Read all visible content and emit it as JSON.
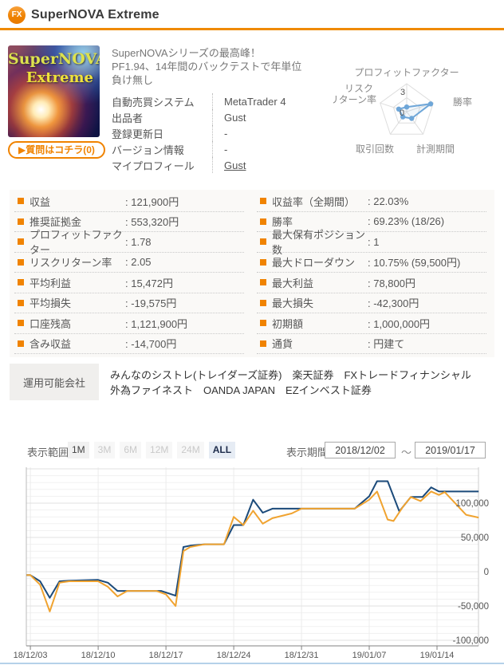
{
  "header": {
    "icon_label": "FX",
    "title": "SuperNOVA Extreme"
  },
  "product": {
    "image_text_line1": "SuperNOVA",
    "image_text_line2": "Extreme",
    "question_button": "▶質問はコチラ(0)",
    "description_lines": [
      "SuperNOVAシリーズの最高峰！",
      "PF1.94、14年間のバックテストで年単位",
      "負け無し"
    ],
    "info_rows": [
      {
        "label": "自動売買システム",
        "value": "MetaTrader 4",
        "link": false
      },
      {
        "label": "出品者",
        "value": "Gust",
        "link": false
      },
      {
        "label": "登録更新日",
        "value": "-",
        "link": false
      },
      {
        "label": "バージョン情報",
        "value": "-",
        "link": false
      },
      {
        "label": "マイプロフィール",
        "value": "Gust",
        "link": true
      }
    ]
  },
  "radar": {
    "axis_labels": {
      "top": "プロフィットファクター",
      "right": "勝率",
      "bottom_right": "計測期間",
      "bottom_left": "取引回数",
      "left_lines": [
        "リスク",
        "リターン率"
      ]
    },
    "scale_top": "3",
    "scale_center": "0",
    "max": 3,
    "values": [
      0.5,
      2.7,
      0.9,
      0.7,
      0.9
    ],
    "line_color": "#6ea6d8",
    "grid_color": "#dddddd"
  },
  "stats": {
    "left": [
      {
        "label": "収益",
        "value": ": 121,900円"
      },
      {
        "label": "推奨証拠金",
        "value": ": 553,320円"
      },
      {
        "label": "プロフィットファクター",
        "value": ": 1.78"
      },
      {
        "label": "リスクリターン率",
        "value": ": 2.05"
      },
      {
        "label": "平均利益",
        "value": ": 15,472円"
      },
      {
        "label": "平均損失",
        "value": ": -19,575円"
      },
      {
        "label": "口座残高",
        "value": ": 1,121,900円"
      },
      {
        "label": "含み収益",
        "value": ": -14,700円"
      }
    ],
    "right": [
      {
        "label": "収益率（全期間）",
        "value": ": 22.03%"
      },
      {
        "label": "勝率",
        "value": ": 69.23% (18/26)"
      },
      {
        "label": "最大保有ポジション数",
        "value": ": 1"
      },
      {
        "label": "最大ドローダウン",
        "value": ": 10.75% (59,500円)"
      },
      {
        "label": "最大利益",
        "value": ": 78,800円"
      },
      {
        "label": "最大損失",
        "value": ": -42,300円"
      },
      {
        "label": "初期額",
        "value": ": 1,000,000円"
      },
      {
        "label": "通貨",
        "value": ": 円建て"
      }
    ]
  },
  "brokers": {
    "label": "運用可能会社",
    "line1": "みんなのシストレ(トレイダーズ証券)　楽天証券　FXトレードフィナンシャル",
    "line2": "外為ファイネスト　OANDA JAPAN　EZインベスト証券"
  },
  "controls": {
    "range_label": "表示範囲",
    "buttons": [
      {
        "label": "1M",
        "state": "default"
      },
      {
        "label": "3M",
        "state": "disabled"
      },
      {
        "label": "6M",
        "state": "disabled"
      },
      {
        "label": "12M",
        "state": "disabled"
      },
      {
        "label": "24M",
        "state": "disabled"
      },
      {
        "label": "ALL",
        "state": "active"
      }
    ],
    "period_label": "表示期間",
    "date_from": "2018/12/02",
    "tilde": "～",
    "date_to": "2019/01/17"
  },
  "chart_data": {
    "type": "line",
    "x_unit": "days from 2018/12/02",
    "x_ticks": [
      {
        "day": 1,
        "label": "18/12/03"
      },
      {
        "day": 8,
        "label": "18/12/10"
      },
      {
        "day": 15,
        "label": "18/12/17"
      },
      {
        "day": 22,
        "label": "18/12/24"
      },
      {
        "day": 29,
        "label": "18/12/31"
      },
      {
        "day": 36,
        "label": "19/01/07"
      },
      {
        "day": 43,
        "label": "19/01/14"
      }
    ],
    "y_ticks": [
      {
        "value": 100000,
        "label": "100,000"
      },
      {
        "value": 50000,
        "label": "50,000"
      },
      {
        "value": 0,
        "label": "0"
      },
      {
        "value": -50000,
        "label": "-50,000"
      },
      {
        "value": -100000,
        "label": "-100,000"
      }
    ],
    "y_minor_step": 10000,
    "y_range": [
      -110000,
      153000
    ],
    "grid": true,
    "legend": "none",
    "series": [
      {
        "name": "navy",
        "color": "#1b4a7a",
        "points": [
          [
            0.6,
            -5000
          ],
          [
            1,
            -5000
          ],
          [
            2,
            -14000
          ],
          [
            3,
            -38000
          ],
          [
            4,
            -14000
          ],
          [
            5,
            -13000
          ],
          [
            8,
            -12000
          ],
          [
            9,
            -16000
          ],
          [
            10,
            -28000
          ],
          [
            11,
            -28000
          ],
          [
            14.5,
            -28000
          ],
          [
            16,
            -35000
          ],
          [
            16.8,
            36000
          ],
          [
            17.5,
            38000
          ],
          [
            19,
            40000
          ],
          [
            21,
            40000
          ],
          [
            22,
            68000
          ],
          [
            23,
            68000
          ],
          [
            24,
            105000
          ],
          [
            25,
            86000
          ],
          [
            26,
            92000
          ],
          [
            28,
            92000
          ],
          [
            34.5,
            92000
          ],
          [
            36,
            110000
          ],
          [
            36.8,
            132000
          ],
          [
            37.9,
            132000
          ],
          [
            39.1,
            88000
          ],
          [
            40.3,
            109000
          ],
          [
            41.5,
            109000
          ],
          [
            42.4,
            123000
          ],
          [
            43.2,
            117000
          ],
          [
            47.3,
            117000
          ]
        ]
      },
      {
        "name": "orange",
        "color": "#f0a330",
        "points": [
          [
            0.6,
            -5000
          ],
          [
            1,
            -5000
          ],
          [
            2,
            -19000
          ],
          [
            3,
            -58000
          ],
          [
            4,
            -16000
          ],
          [
            5,
            -14000
          ],
          [
            8,
            -14000
          ],
          [
            9,
            -22000
          ],
          [
            10,
            -36000
          ],
          [
            11,
            -28000
          ],
          [
            14,
            -28000
          ],
          [
            15,
            -33000
          ],
          [
            16,
            -50000
          ],
          [
            16.8,
            30000
          ],
          [
            17.5,
            36000
          ],
          [
            19,
            40000
          ],
          [
            21,
            40000
          ],
          [
            22,
            80000
          ],
          [
            23,
            68000
          ],
          [
            24,
            89000
          ],
          [
            25,
            70000
          ],
          [
            26,
            78000
          ],
          [
            28,
            85000
          ],
          [
            29,
            92000
          ],
          [
            34.5,
            92000
          ],
          [
            36,
            105000
          ],
          [
            36.8,
            117000
          ],
          [
            37.9,
            76000
          ],
          [
            38.5,
            74000
          ],
          [
            39.5,
            95000
          ],
          [
            40.3,
            109000
          ],
          [
            41.3,
            103000
          ],
          [
            42.4,
            117000
          ],
          [
            43.2,
            112000
          ],
          [
            43.8,
            116000
          ],
          [
            45,
            98000
          ],
          [
            46,
            83000
          ],
          [
            47.3,
            79000
          ]
        ]
      }
    ]
  }
}
